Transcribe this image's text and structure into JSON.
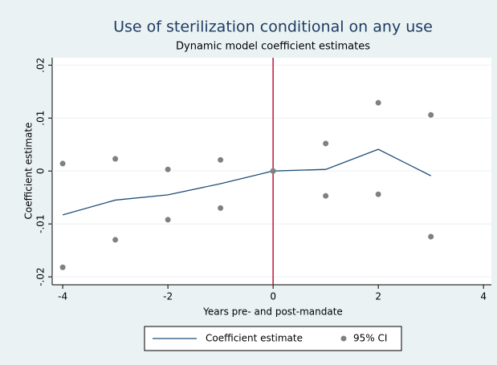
{
  "chart_data": {
    "type": "line",
    "title": "Use of sterilization conditional on any use",
    "subtitle": "Dynamic model coefficient estimates",
    "x_label": "Years pre- and post-mandate",
    "y_label": "Coefficient estimate",
    "x": [
      -4,
      -3,
      -2,
      -1,
      0,
      1,
      2,
      3
    ],
    "series": [
      {
        "name": "Coefficient estimate",
        "color": "#1f4e79",
        "values": [
          -0.0083,
          -0.0055,
          -0.0045,
          -0.0024,
          0,
          0.0003,
          0.0041,
          -0.0009
        ]
      },
      {
        "name": "95% CI",
        "type": "scatter",
        "color": "#808080",
        "upper": [
          0.0014,
          0.0023,
          0.0003,
          0.0021,
          0,
          0.0052,
          0.0129,
          0.0106
        ],
        "lower": [
          -0.0182,
          -0.013,
          -0.0092,
          -0.007,
          0,
          -0.0047,
          -0.0044,
          -0.0124
        ]
      }
    ],
    "xlim": [
      -4.2,
      4.15
    ],
    "xticks": [
      -4,
      -2,
      0,
      2,
      4
    ],
    "ylim": [
      -0.0215,
      0.0214
    ],
    "yticks": [
      {
        "value": -0.02,
        "label": "-.02"
      },
      {
        "value": -0.01,
        "label": "-.01"
      },
      0,
      {
        "value": 0.01,
        "label": ".01"
      },
      {
        "value": 0.02,
        "label": ".02"
      }
    ],
    "grid": true,
    "vline": 0,
    "vline_color": "#c0143c",
    "legend": "bottom"
  }
}
